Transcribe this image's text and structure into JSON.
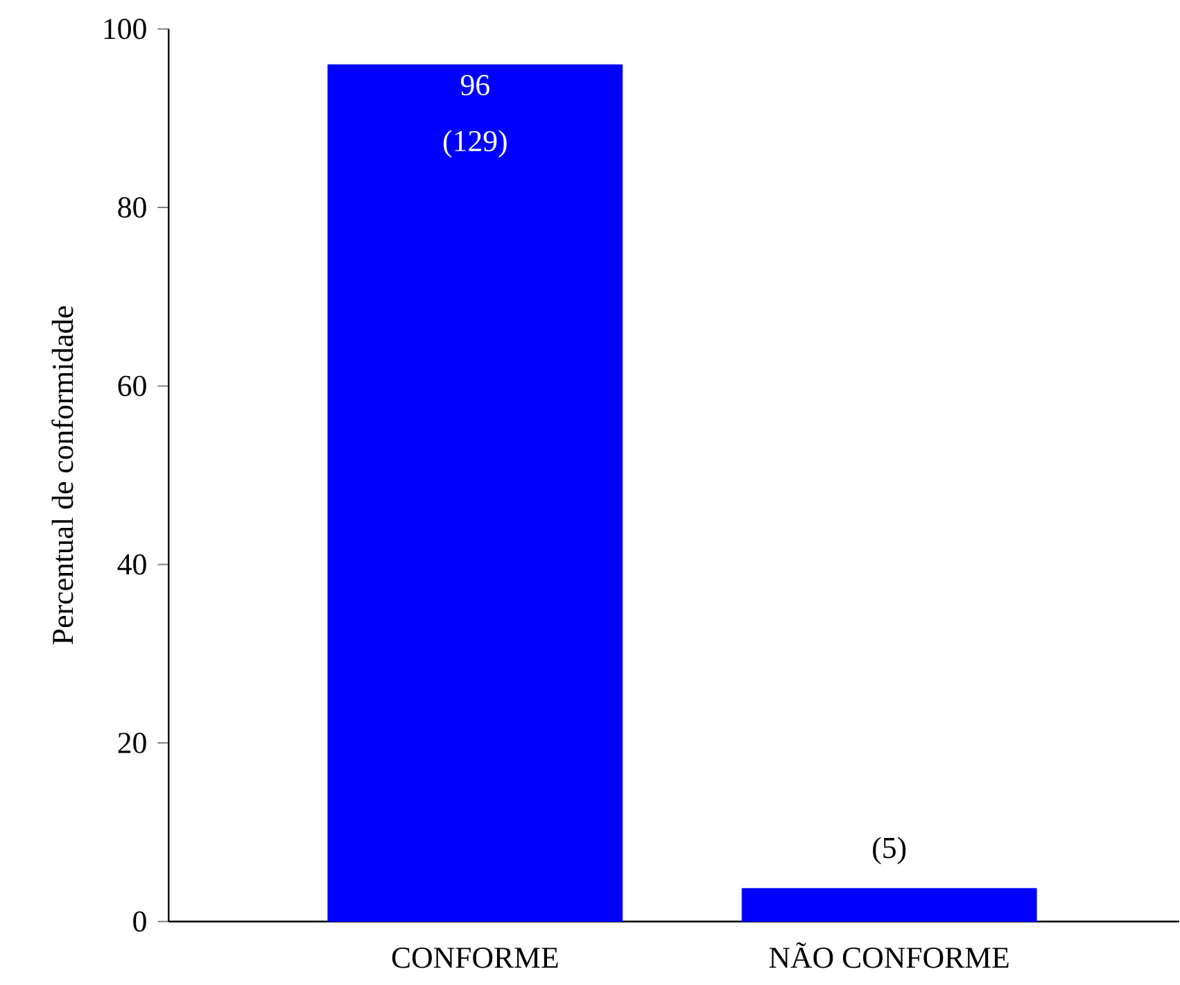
{
  "chart_data": {
    "type": "bar",
    "ylabel": "Percentual de conformidade",
    "categories": [
      "CONFORME",
      "NÃO CONFORME"
    ],
    "values": [
      96,
      3.7
    ],
    "color": "#0000ff",
    "value_labels": [
      "96",
      null
    ],
    "annotations": [
      {
        "text": "(129)",
        "x": "CONFORME",
        "y": 96
      },
      {
        "text": "(5)",
        "x": "NÃO CONFORME",
        "y": 3.7
      }
    ],
    "ylim": [
      0,
      100
    ],
    "yticks": [
      0,
      20,
      40,
      60,
      80,
      100
    ],
    "grid": false
  }
}
